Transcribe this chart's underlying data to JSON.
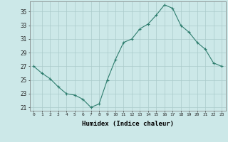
{
  "x": [
    0,
    1,
    2,
    3,
    4,
    5,
    6,
    7,
    8,
    9,
    10,
    11,
    12,
    13,
    14,
    15,
    16,
    17,
    18,
    19,
    20,
    21,
    22,
    23
  ],
  "y": [
    27,
    26,
    25.2,
    24,
    23,
    22.8,
    22.2,
    21.0,
    21.5,
    25,
    28,
    30.5,
    31,
    32.5,
    33.2,
    34.5,
    36,
    35.5,
    33,
    32,
    30.5,
    29.5,
    27.5,
    27
  ],
  "line_color": "#2e7d6e",
  "marker": "+",
  "marker_size": 3,
  "marker_color": "#2e7d6e",
  "bg_color": "#cce8e8",
  "grid_color": "#aacaca",
  "xlabel": "Humidex (Indice chaleur)",
  "ylim": [
    20.5,
    36.5
  ],
  "yticks": [
    21,
    23,
    25,
    27,
    29,
    31,
    33,
    35
  ],
  "xticks": [
    0,
    1,
    2,
    3,
    4,
    5,
    6,
    7,
    8,
    9,
    10,
    11,
    12,
    13,
    14,
    15,
    16,
    17,
    18,
    19,
    20,
    21,
    22,
    23
  ]
}
